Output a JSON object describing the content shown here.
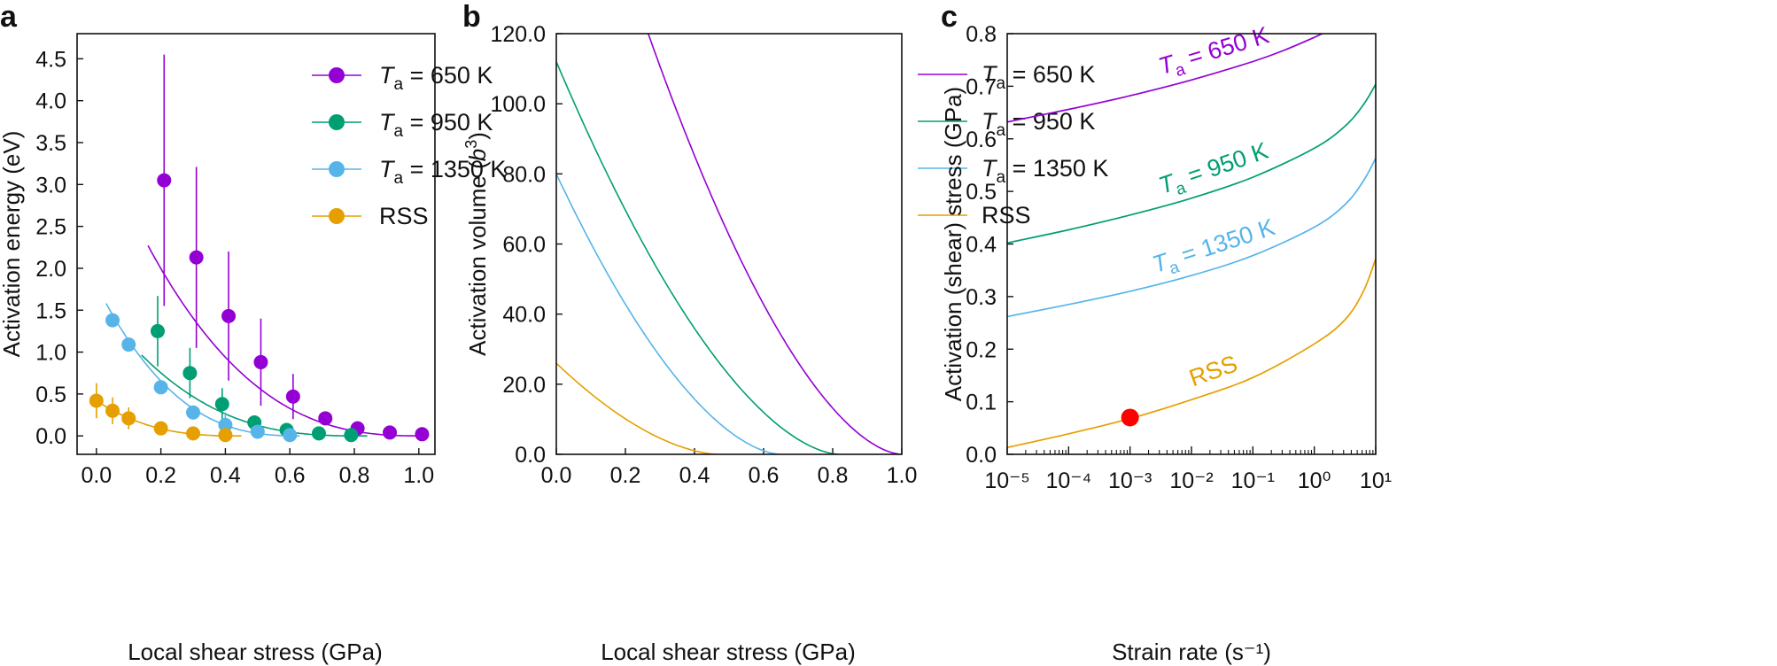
{
  "chart_data": [
    {
      "panel": "a",
      "type": "scatter",
      "xlabel": "Local shear stress (GPa)",
      "ylabel": "Activation energy (eV)",
      "xlim": [
        -0.06,
        1.05
      ],
      "ylim": [
        -0.22,
        4.8
      ],
      "xticks": [
        0.0,
        0.2,
        0.4,
        0.6,
        0.8,
        1.0
      ],
      "xtick_labels": [
        "0.0",
        "0.2",
        "0.4",
        "0.6",
        "0.8",
        "1.0"
      ],
      "yticks": [
        0.0,
        0.5,
        1.0,
        1.5,
        2.0,
        2.5,
        3.0,
        3.5,
        4.0,
        4.5
      ],
      "ytick_labels": [
        "0.0",
        "0.5",
        "1.0",
        "1.5",
        "2.0",
        "2.5",
        "3.0",
        "3.5",
        "4.0",
        "4.5"
      ],
      "legend_position": "top-right",
      "series": [
        {
          "name": "T_a = 650 K",
          "legend_label": {
            "sym": "T",
            "sub": "a",
            "rest": " = 650 K"
          },
          "color": "#9400d3",
          "points": [
            [
              0.21,
              3.05
            ],
            [
              0.31,
              2.13
            ],
            [
              0.41,
              1.43
            ],
            [
              0.51,
              0.88
            ],
            [
              0.61,
              0.47
            ],
            [
              0.71,
              0.21
            ],
            [
              0.81,
              0.09
            ],
            [
              0.91,
              0.04
            ],
            [
              1.01,
              0.02
            ]
          ],
          "errors": [
            1.5,
            1.08,
            0.77,
            0.52,
            0.27,
            0.07,
            0.04,
            0.02,
            0.01
          ],
          "fit": {
            "x_start": 0.16,
            "x_end": 1.01,
            "a": 3.6,
            "x0": 1.02,
            "n": 2.7
          }
        },
        {
          "name": "T_a = 950 K",
          "legend_label": {
            "sym": "T",
            "sub": "a",
            "rest": " = 950 K"
          },
          "color": "#009e73",
          "points": [
            [
              0.19,
              1.25
            ],
            [
              0.29,
              0.75
            ],
            [
              0.39,
              0.38
            ],
            [
              0.49,
              0.16
            ],
            [
              0.59,
              0.07
            ],
            [
              0.69,
              0.03
            ],
            [
              0.79,
              0.01
            ]
          ],
          "errors": [
            0.42,
            0.3,
            0.19,
            0.07,
            0.04,
            0.02,
            0.01
          ],
          "fit": {
            "x_start": 0.14,
            "x_end": 0.84,
            "a": 1.6,
            "x0": 0.82,
            "n": 2.7
          }
        },
        {
          "name": "T_a = 1350 K",
          "legend_label": {
            "sym": "T",
            "sub": "a",
            "rest": " = 1350 K"
          },
          "color": "#56b4e9",
          "points": [
            [
              0.05,
              1.38
            ],
            [
              0.1,
              1.09
            ],
            [
              0.2,
              0.58
            ],
            [
              0.3,
              0.28
            ],
            [
              0.4,
              0.13
            ],
            [
              0.5,
              0.05
            ],
            [
              0.6,
              0.01
            ]
          ],
          "errors": [
            0.07,
            0.05,
            0.05,
            0.05,
            0.15,
            0.05,
            0.03
          ],
          "fit": {
            "x_start": 0.03,
            "x_end": 0.63,
            "a": 1.8,
            "x0": 0.64,
            "n": 2.7
          }
        },
        {
          "name": "RSS",
          "legend_label": {
            "sym": "",
            "sub": "",
            "rest": "RSS"
          },
          "color": "#e69f00",
          "points": [
            [
              0.0,
              0.42
            ],
            [
              0.05,
              0.3
            ],
            [
              0.1,
              0.21
            ],
            [
              0.2,
              0.09
            ],
            [
              0.3,
              0.03
            ],
            [
              0.4,
              0.01
            ]
          ],
          "errors": [
            0.21,
            0.16,
            0.13,
            0.04,
            0.02,
            0.01
          ],
          "fit": {
            "x_start": 0.0,
            "x_end": 0.45,
            "a": 0.42,
            "x0": 0.45,
            "n": 2.7
          }
        }
      ]
    },
    {
      "panel": "b",
      "type": "line",
      "xlabel": "Local shear stress (GPa)",
      "ylabel": "Activation volume (b3)",
      "ylabel_parts": {
        "text": "Activation volume (",
        "sym": "b",
        "sup": "3",
        "close": ")"
      },
      "xlim": [
        0.0,
        1.0
      ],
      "ylim": [
        0.0,
        120.0
      ],
      "xticks": [
        0.0,
        0.2,
        0.4,
        0.6,
        0.8,
        1.0
      ],
      "xtick_labels": [
        "0.0",
        "0.2",
        "0.4",
        "0.6",
        "0.8",
        "1.0"
      ],
      "yticks": [
        0.0,
        20.0,
        40.0,
        60.0,
        80.0,
        100.0,
        120.0
      ],
      "ytick_labels": [
        "0.0",
        "20.0",
        "40.0",
        "60.0",
        "80.0",
        "100.0",
        "120.0"
      ],
      "legend_position": "top-right",
      "series": [
        {
          "name": "T_a = 650 K",
          "legend_label": {
            "sym": "T",
            "sub": "a",
            "rest": " = 650 K"
          },
          "color": "#9400d3",
          "a": 203,
          "x0": 1.0,
          "n": 1.7,
          "x_end": 1.0
        },
        {
          "name": "T_a = 950 K",
          "legend_label": {
            "sym": "T",
            "sub": "a",
            "rest": " = 950 K"
          },
          "color": "#009e73",
          "a": 112,
          "x0": 0.82,
          "n": 1.7,
          "x_end": 0.82
        },
        {
          "name": "T_a = 1350 K",
          "legend_label": {
            "sym": "T",
            "sub": "a",
            "rest": " = 1350 K"
          },
          "color": "#56b4e9",
          "a": 80,
          "x0": 0.65,
          "n": 1.7,
          "x_end": 0.65
        },
        {
          "name": "RSS",
          "legend_label": {
            "sym": "",
            "sub": "",
            "rest": "RSS"
          },
          "color": "#e69f00",
          "a": 26,
          "x0": 0.47,
          "n": 1.7,
          "x_end": 0.47
        }
      ]
    },
    {
      "panel": "c",
      "type": "line",
      "xscale": "log",
      "xlabel": "Strain rate (s⁻¹)",
      "ylabel": "Activation (shear) stress (GPa)",
      "xlim_log10": [
        -5,
        1
      ],
      "ylim": [
        0.0,
        0.8
      ],
      "xtick_exponents": [
        -5,
        -4,
        -3,
        -2,
        -1,
        0,
        1
      ],
      "xtick_labels": [
        "10⁻⁵",
        "10⁻⁴",
        "10⁻³",
        "10⁻²",
        "10⁻¹",
        "10⁰",
        "10¹"
      ],
      "yticks": [
        0.0,
        0.1,
        0.2,
        0.3,
        0.4,
        0.5,
        0.6,
        0.7,
        0.8
      ],
      "ytick_labels": [
        "0.0",
        "0.1",
        "0.2",
        "0.3",
        "0.4",
        "0.5",
        "0.6",
        "0.7",
        "0.8"
      ],
      "series": [
        {
          "name": "T_a = 650 K",
          "label": {
            "sym": "T",
            "sub": "a",
            "rest": " = 650 K"
          },
          "color": "#9400d3",
          "points": [
            [
              -5,
              0.632
            ],
            [
              -4,
              0.656
            ],
            [
              -3,
              0.682
            ],
            [
              -2,
              0.712
            ],
            [
              -1,
              0.747
            ],
            [
              -0.5,
              0.768
            ],
            [
              0,
              0.793
            ],
            [
              0.3,
              0.81
            ]
          ]
        },
        {
          "name": "T_a = 950 K",
          "label": {
            "sym": "T",
            "sub": "a",
            "rest": " = 950 K"
          },
          "color": "#009e73",
          "points": [
            [
              -5,
              0.402
            ],
            [
              -4,
              0.427
            ],
            [
              -3,
              0.455
            ],
            [
              -2,
              0.487
            ],
            [
              -1,
              0.527
            ],
            [
              0,
              0.582
            ],
            [
              0.5,
              0.624
            ],
            [
              0.8,
              0.665
            ],
            [
              1,
              0.704
            ]
          ]
        },
        {
          "name": "T_a = 1350 K",
          "label": {
            "sym": "T",
            "sub": "a",
            "rest": " = 1350 K"
          },
          "color": "#56b4e9",
          "points": [
            [
              -5,
              0.262
            ],
            [
              -4,
              0.285
            ],
            [
              -3,
              0.31
            ],
            [
              -2,
              0.34
            ],
            [
              -1,
              0.378
            ],
            [
              0,
              0.432
            ],
            [
              0.5,
              0.475
            ],
            [
              0.8,
              0.52
            ],
            [
              1,
              0.563
            ]
          ]
        },
        {
          "name": "RSS",
          "label": {
            "sym": "",
            "sub": "",
            "rest": "RSS"
          },
          "color": "#e69f00",
          "points": [
            [
              -5,
              0.013
            ],
            [
              -4,
              0.039
            ],
            [
              -3,
              0.068
            ],
            [
              -2,
              0.104
            ],
            [
              -1,
              0.146
            ],
            [
              0,
              0.21
            ],
            [
              0.5,
              0.256
            ],
            [
              0.8,
              0.31
            ],
            [
              1,
              0.372
            ]
          ]
        }
      ],
      "marker": {
        "x_log10": -3,
        "y": 0.07,
        "color": "#ff0000"
      }
    }
  ]
}
